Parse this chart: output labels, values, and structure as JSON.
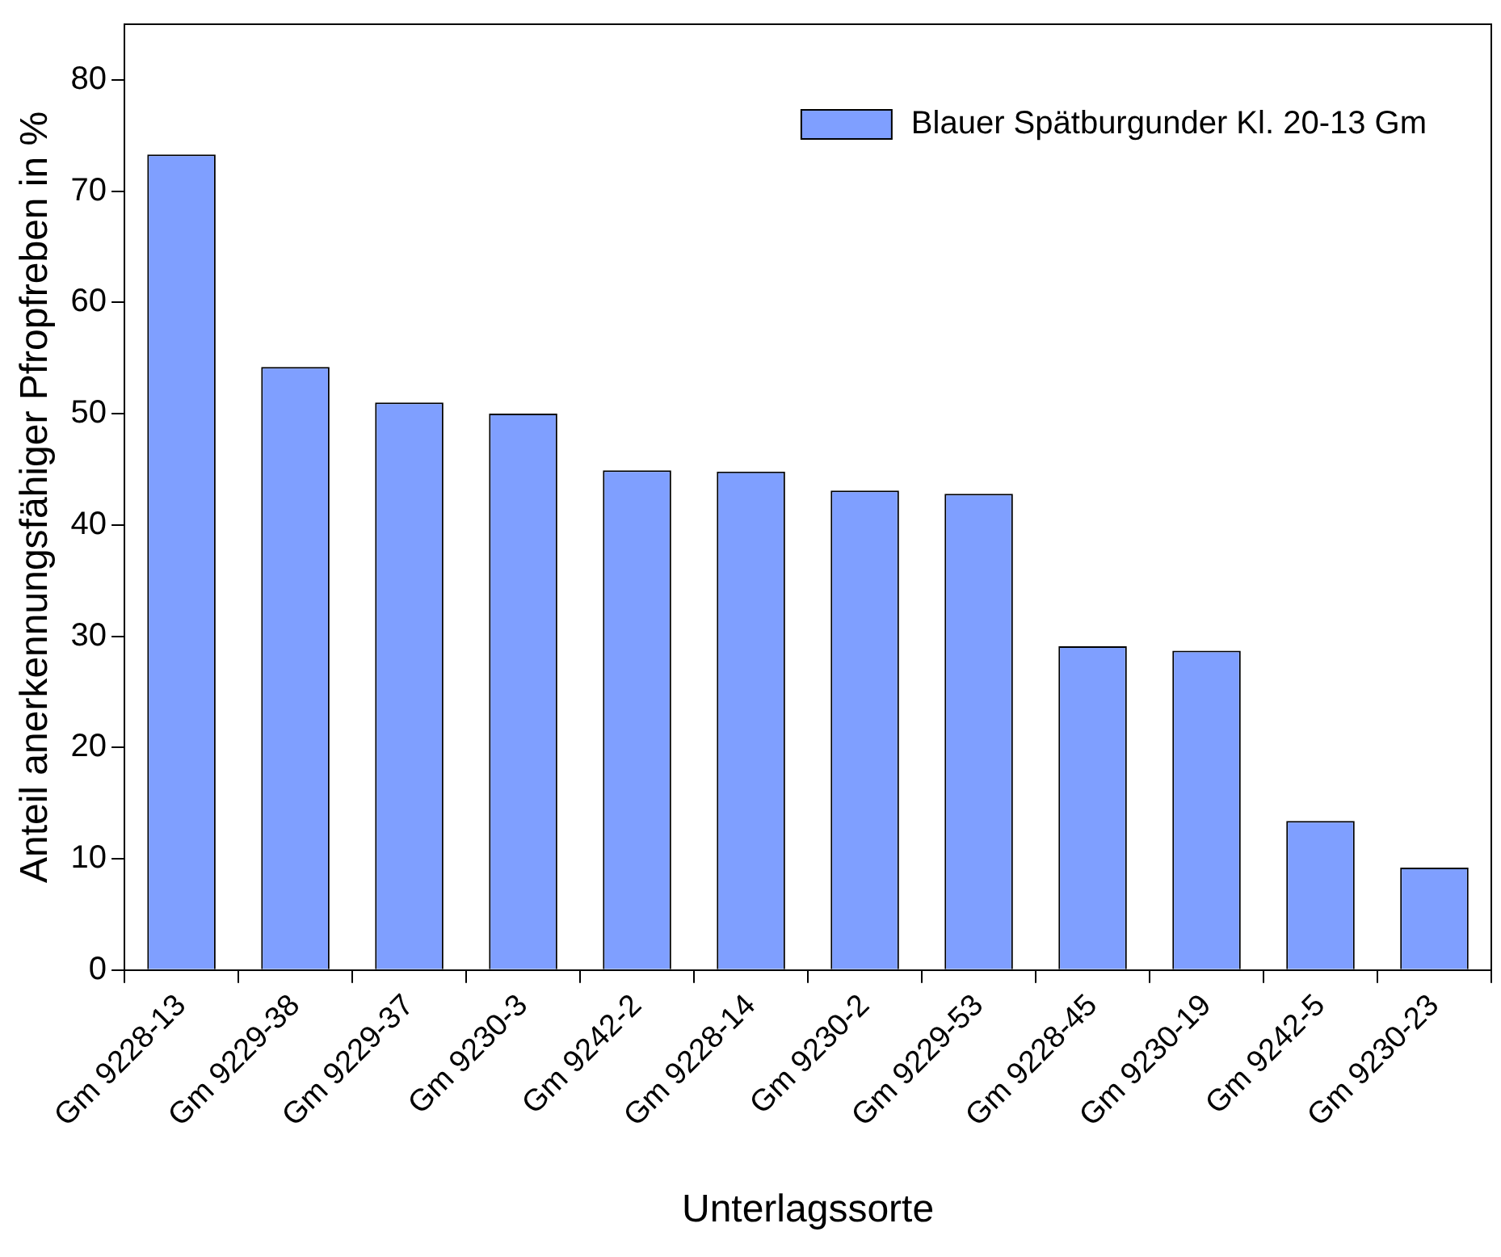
{
  "chart_data": {
    "type": "bar",
    "xlabel": "Unterlagssorte",
    "ylabel": "Anteil anerkennungsfähiger Pfropfreben in %",
    "categories": [
      "Gm 9228-13",
      "Gm 9229-38",
      "Gm 9229-37",
      "Gm 9230-3",
      "Gm 9242-2",
      "Gm 9228-14",
      "Gm 9230-2",
      "Gm 9229-53",
      "Gm 9228-45",
      "Gm 9230-19",
      "Gm 9242-5",
      "Gm 9230-23"
    ],
    "series": [
      {
        "name": "Blauer Spätburgunder Kl. 20-13 Gm",
        "color": "#7f9fff",
        "values": [
          73.3,
          54.2,
          51.0,
          50.0,
          44.9,
          44.8,
          43.1,
          42.8,
          29.1,
          28.7,
          13.4,
          9.2
        ]
      }
    ],
    "ylim": [
      0,
      85
    ],
    "yticks": [
      0,
      10,
      20,
      30,
      40,
      50,
      60,
      70,
      80
    ],
    "grid": false,
    "legend": "top right"
  }
}
